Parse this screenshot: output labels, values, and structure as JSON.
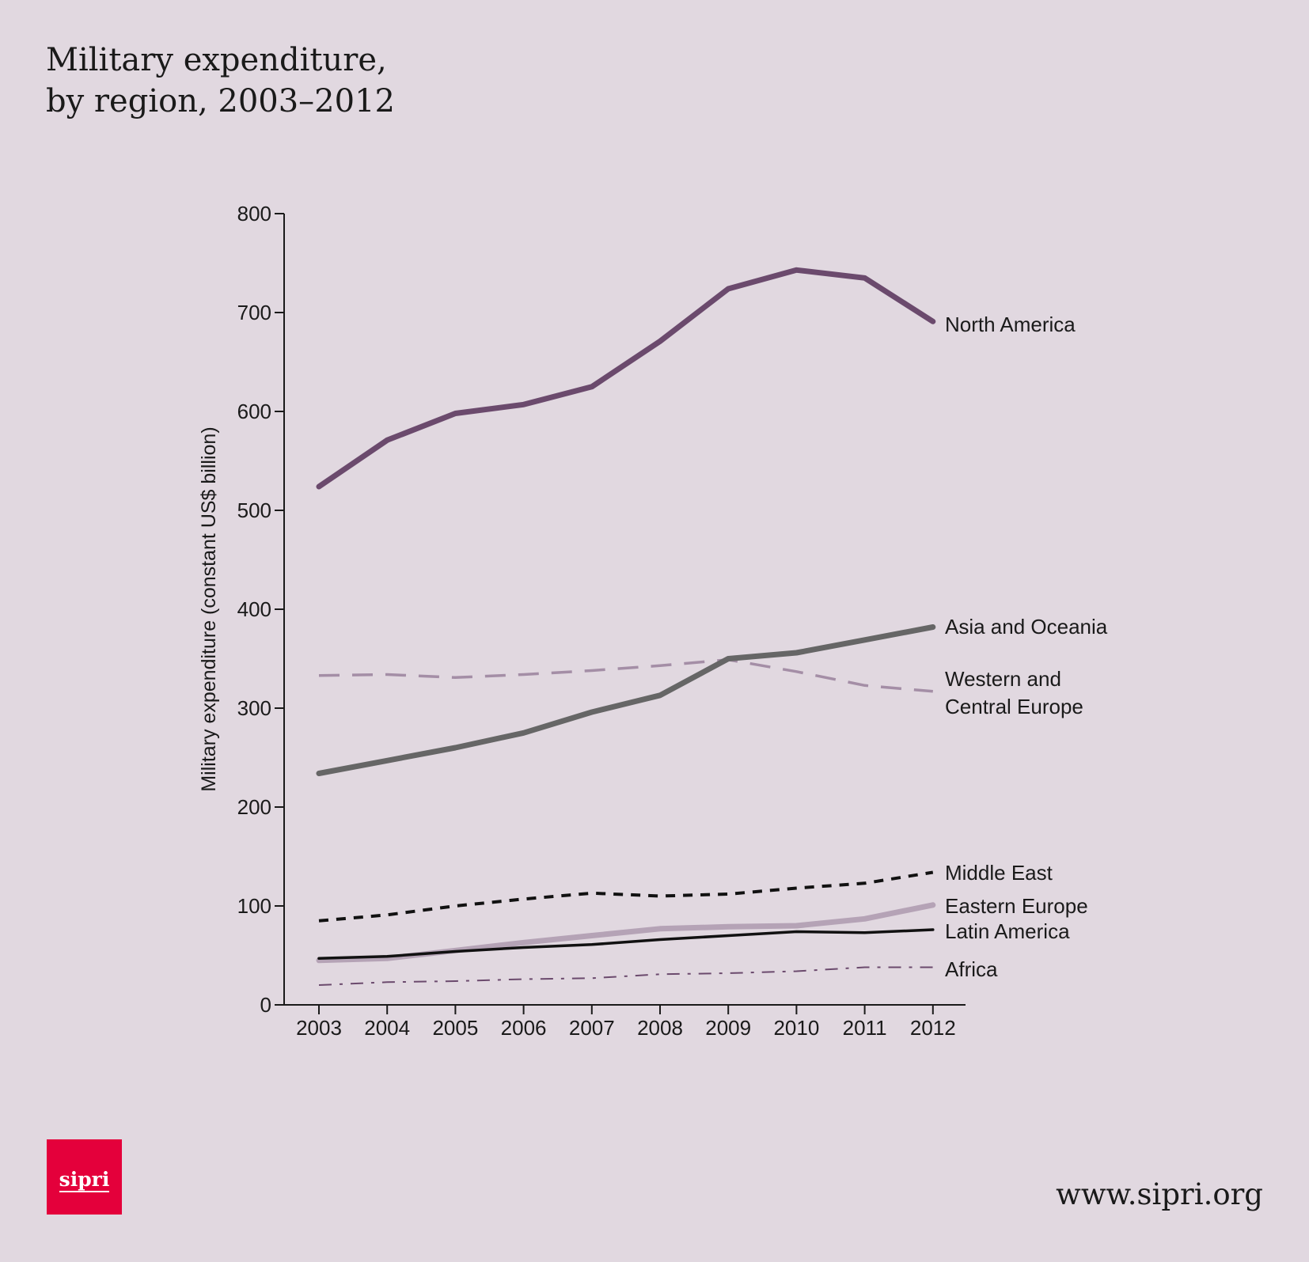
{
  "title_line1": "Military expenditure,",
  "title_line2": "by region, 2003–2012",
  "footer": {
    "logo_text": "sipri",
    "url": "www.sipri.org"
  },
  "colors": {
    "background": "#e1d8e0",
    "logo": "#e4003b"
  },
  "chart_data": {
    "type": "line",
    "title": "Military expenditure, by region, 2003–2012",
    "xlabel": "",
    "ylabel": "Military expenditure (constant US$ billion)",
    "x": [
      2003,
      2004,
      2005,
      2006,
      2007,
      2008,
      2009,
      2010,
      2011,
      2012
    ],
    "ylim": [
      0,
      800
    ],
    "yticks": [
      0,
      100,
      200,
      300,
      400,
      500,
      600,
      700,
      800
    ],
    "grid": false,
    "legend": "inline labels at line ends",
    "series": [
      {
        "name": "North America",
        "values": [
          524,
          571,
          598,
          607,
          625,
          671,
          724,
          743,
          735,
          691
        ],
        "color": "#6b4a6d",
        "style": "solid-thick",
        "label_lines": [
          "North America"
        ]
      },
      {
        "name": "Asia and Oceania",
        "values": [
          234,
          247,
          260,
          275,
          296,
          313,
          350,
          356,
          369,
          382
        ],
        "color": "#666666",
        "style": "solid-thick",
        "label_lines": [
          "Asia and Oceania"
        ]
      },
      {
        "name": "Western and Central Europe",
        "values": [
          333,
          334,
          331,
          334,
          338,
          343,
          349,
          337,
          323,
          317
        ],
        "color": "#a48ea6",
        "style": "dashed",
        "label_lines": [
          "Western and",
          "Central Europe"
        ]
      },
      {
        "name": "Middle East",
        "values": [
          85,
          91,
          100,
          107,
          113,
          110,
          112,
          118,
          123,
          134
        ],
        "color": "#111111",
        "style": "short-dash",
        "label_lines": [
          "Middle East"
        ]
      },
      {
        "name": "Eastern Europe",
        "values": [
          45,
          47,
          55,
          63,
          70,
          77,
          79,
          80,
          87,
          101
        ],
        "color": "#b5a3b6",
        "style": "solid-thick",
        "label_lines": [
          "Eastern Europe"
        ]
      },
      {
        "name": "Latin America",
        "values": [
          47,
          49,
          54,
          58,
          61,
          66,
          70,
          74,
          73,
          76
        ],
        "color": "#111111",
        "style": "solid-thin",
        "label_lines": [
          "Latin America"
        ]
      },
      {
        "name": "Africa",
        "values": [
          20,
          23,
          24,
          26,
          27,
          31,
          32,
          34,
          38,
          38
        ],
        "color": "#6b4a6d",
        "style": "dash-dot",
        "label_lines": [
          "Africa"
        ]
      }
    ]
  }
}
